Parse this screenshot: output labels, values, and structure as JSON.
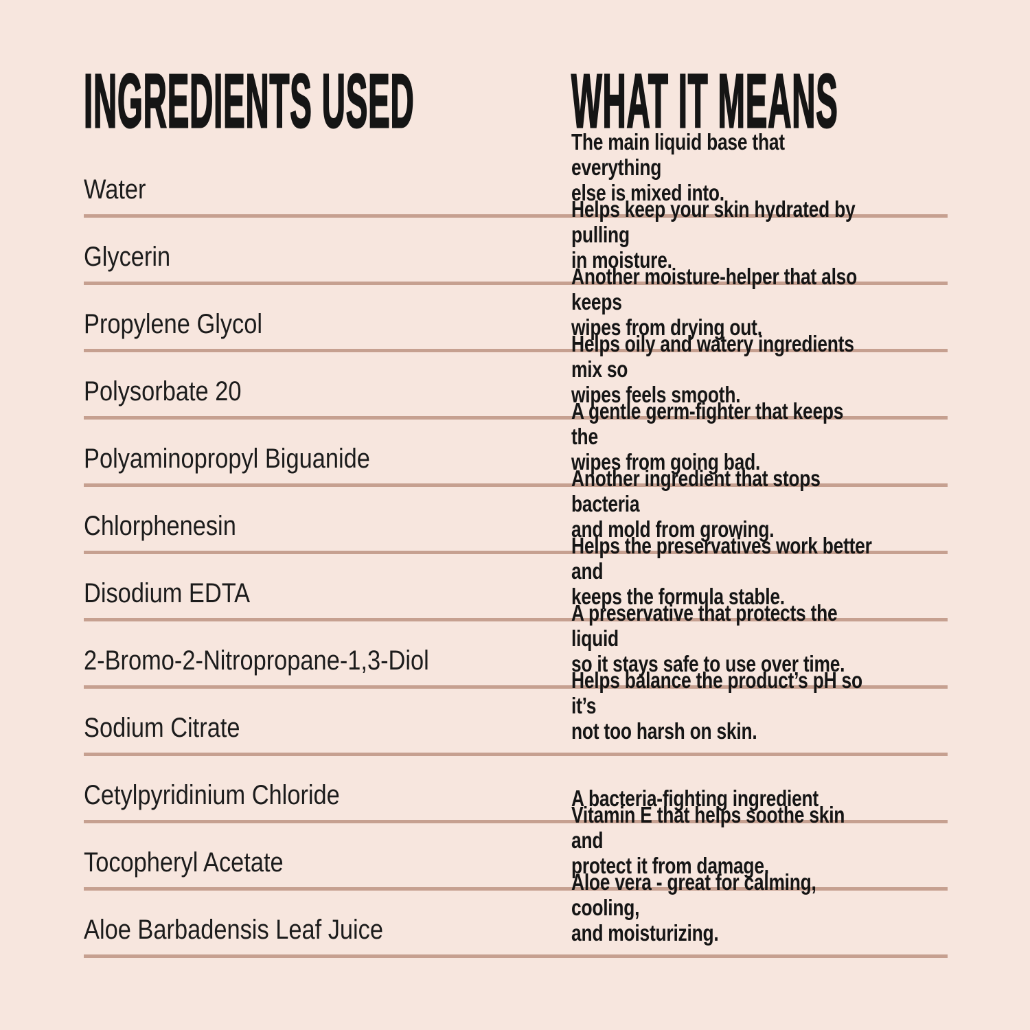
{
  "colors": {
    "bg": "#f7e6de",
    "divider": "#c6a090",
    "ink": "#151515",
    "name-ink": "#1c1c1c"
  },
  "table": {
    "left_header": "INGREDIENTS USED",
    "right_header": "WHAT IT MEANS",
    "rows": [
      {
        "ingredient": "Water",
        "meaning": [
          "The main liquid base that everything",
          "else is mixed into."
        ]
      },
      {
        "ingredient": "Glycerin",
        "meaning": [
          "Helps keep your skin hydrated by pulling",
          "in moisture."
        ]
      },
      {
        "ingredient": "Propylene Glycol",
        "meaning": [
          "Another moisture-helper that also keeps",
          "wipes from drying out."
        ]
      },
      {
        "ingredient": "Polysorbate 20",
        "meaning": [
          "Helps oily and watery ingredients mix so",
          "wipes feels smooth."
        ]
      },
      {
        "ingredient": "Polyaminopropyl Biguanide",
        "meaning": [
          "A gentle germ-fighter that keeps the",
          "wipes from going bad."
        ]
      },
      {
        "ingredient": "Chlorphenesin",
        "meaning": [
          "Another ingredient that stops bacteria",
          "and mold from growing."
        ]
      },
      {
        "ingredient": "Disodium EDTA",
        "meaning": [
          "Helps the preservatives work better and",
          "keeps the formula stable."
        ]
      },
      {
        "ingredient": "2-Bromo-2-Nitropropane-1,3-Diol",
        "meaning": [
          "A preservative that protects the liquid",
          "so it stays safe to use over time."
        ]
      },
      {
        "ingredient": "Sodium Citrate",
        "meaning": [
          "Helps balance the product’s pH so it’s",
          "not too harsh on skin."
        ]
      },
      {
        "ingredient": "Cetylpyridinium Chloride",
        "meaning": [
          "A bacteria-fighting ingredient"
        ]
      },
      {
        "ingredient": "Tocopheryl Acetate",
        "meaning": [
          "Vitamin E that helps soothe skin and",
          "protect it from damage."
        ]
      },
      {
        "ingredient": "Aloe Barbadensis Leaf Juice",
        "meaning": [
          "Aloe vera - great for calming, cooling,",
          "and moisturizing."
        ]
      }
    ]
  }
}
